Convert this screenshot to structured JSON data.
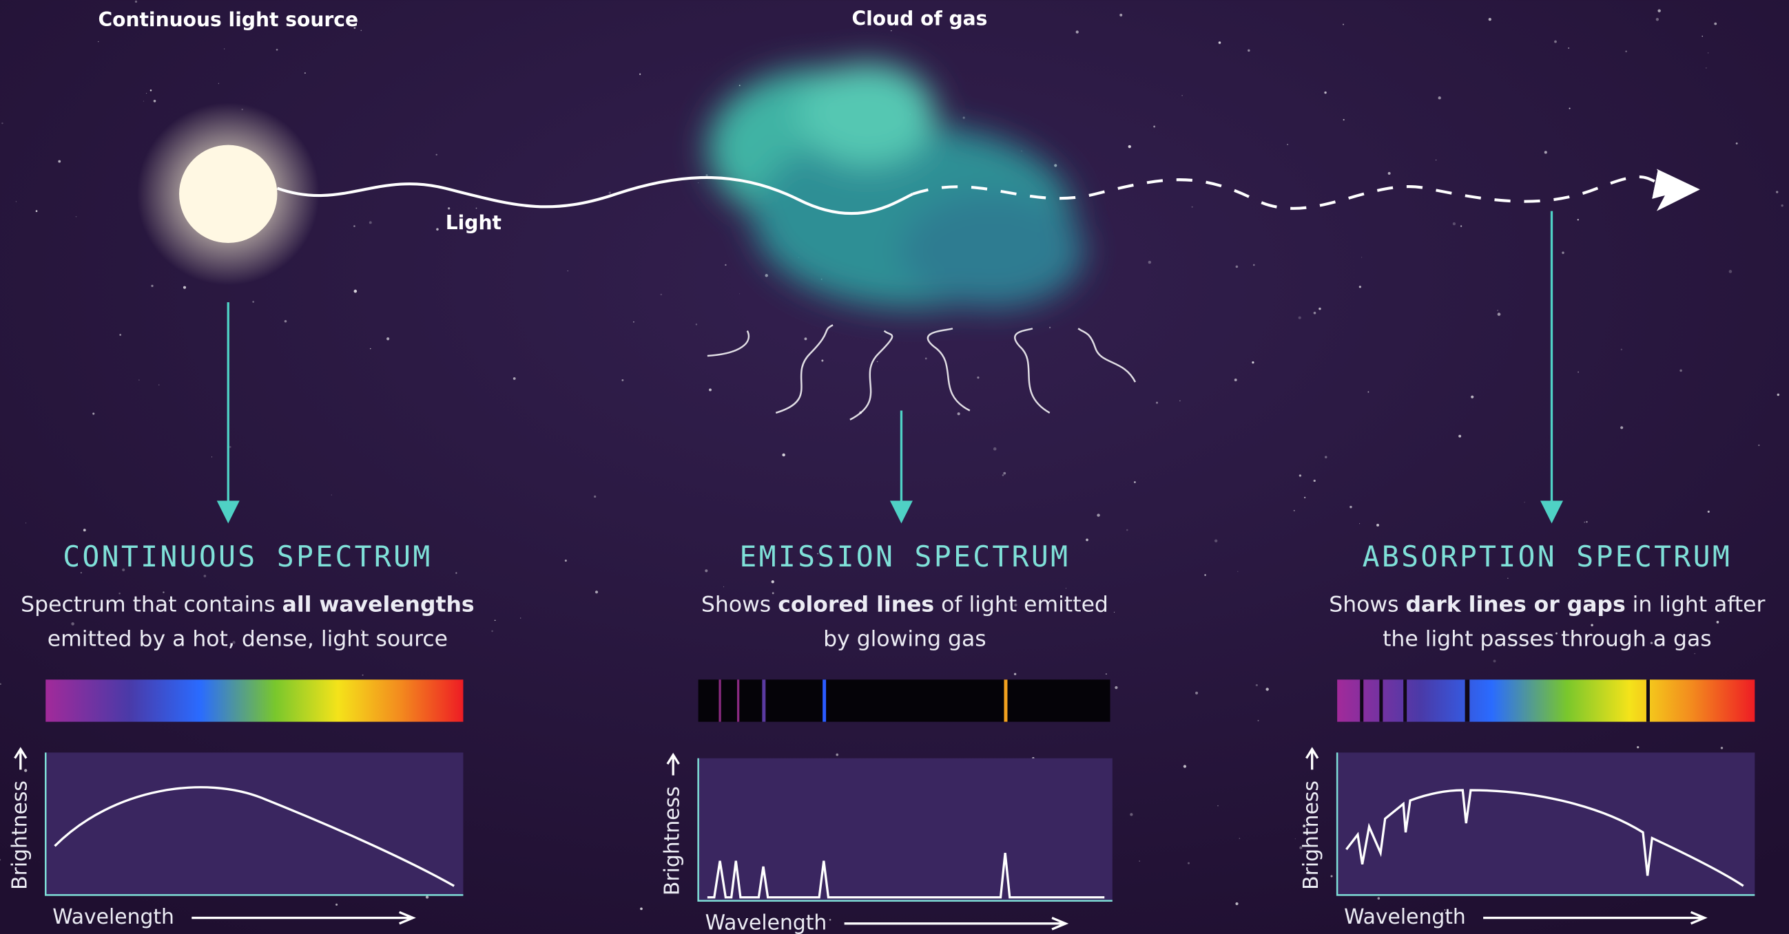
{
  "labels": {
    "source": "Continuous light source",
    "cloud": "Cloud of gas",
    "light": "Light"
  },
  "panels": [
    {
      "title": "CONTINUOUS SPECTRUM",
      "description": [
        [
          {
            "text": "Spectrum that contains "
          },
          {
            "text": "all wavelengths",
            "bold": true
          }
        ],
        [
          {
            "text": "emitted by a hot, dense, light source"
          }
        ]
      ],
      "y_axis": "Brightness",
      "x_axis": "Wavelength"
    },
    {
      "title": "EMISSION SPECTRUM",
      "description": [
        [
          {
            "text": "Shows "
          },
          {
            "text": "colored lines",
            "bold": true
          },
          {
            "text": " of light emitted"
          }
        ],
        [
          {
            "text": "by glowing gas"
          }
        ]
      ],
      "y_axis": "Brightness",
      "x_axis": "Wavelength"
    },
    {
      "title": "ABSORPTION SPECTRUM",
      "description": [
        [
          {
            "text": "Shows "
          },
          {
            "text": "dark lines or gaps",
            "bold": true
          },
          {
            "text": " in light after"
          }
        ],
        [
          {
            "text": "the light passes through a gas"
          }
        ]
      ],
      "y_axis": "Brightness",
      "x_axis": "Wavelength"
    }
  ]
}
